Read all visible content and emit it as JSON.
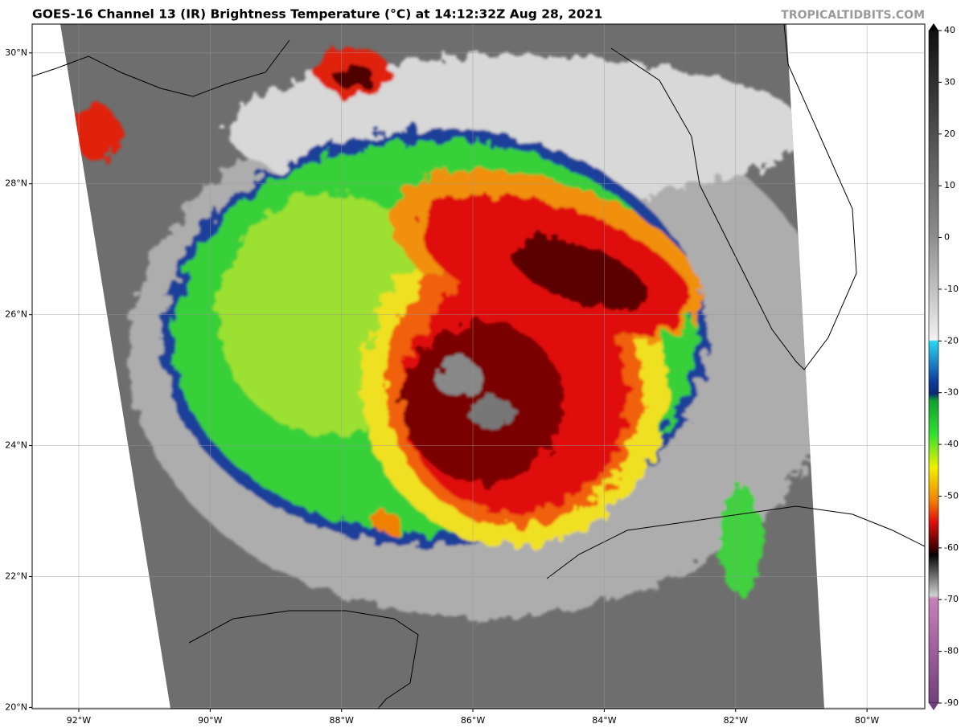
{
  "title": "GOES-16 Channel 13 (IR) Brightness Temperature (°C) at 14:12:32Z Aug 28, 2021",
  "watermark": "TROPICALTIDBITS.COM",
  "map": {
    "xlim": [
      -92.71,
      -79.12
    ],
    "ylim": [
      19.98,
      30.44
    ],
    "lon_ticks": [
      {
        "value": -92,
        "label": "92°W"
      },
      {
        "value": -90,
        "label": "90°W"
      },
      {
        "value": -88,
        "label": "88°W"
      },
      {
        "value": -86,
        "label": "86°W"
      },
      {
        "value": -84,
        "label": "84°W"
      },
      {
        "value": -82,
        "label": "82°W"
      },
      {
        "value": -80,
        "label": "80°W"
      }
    ],
    "lat_ticks": [
      {
        "value": 20,
        "label": "20°N"
      },
      {
        "value": 22,
        "label": "22°N"
      },
      {
        "value": 24,
        "label": "24°N"
      },
      {
        "value": 26,
        "label": "26°N"
      },
      {
        "value": 28,
        "label": "28°N"
      },
      {
        "value": 30,
        "label": "30°N"
      }
    ]
  },
  "colorbar": {
    "lim": [
      -90,
      40
    ],
    "ticks": [
      40,
      30,
      20,
      10,
      0,
      -10,
      -20,
      -30,
      -40,
      -50,
      -60,
      -70,
      -80,
      -90
    ]
  }
}
